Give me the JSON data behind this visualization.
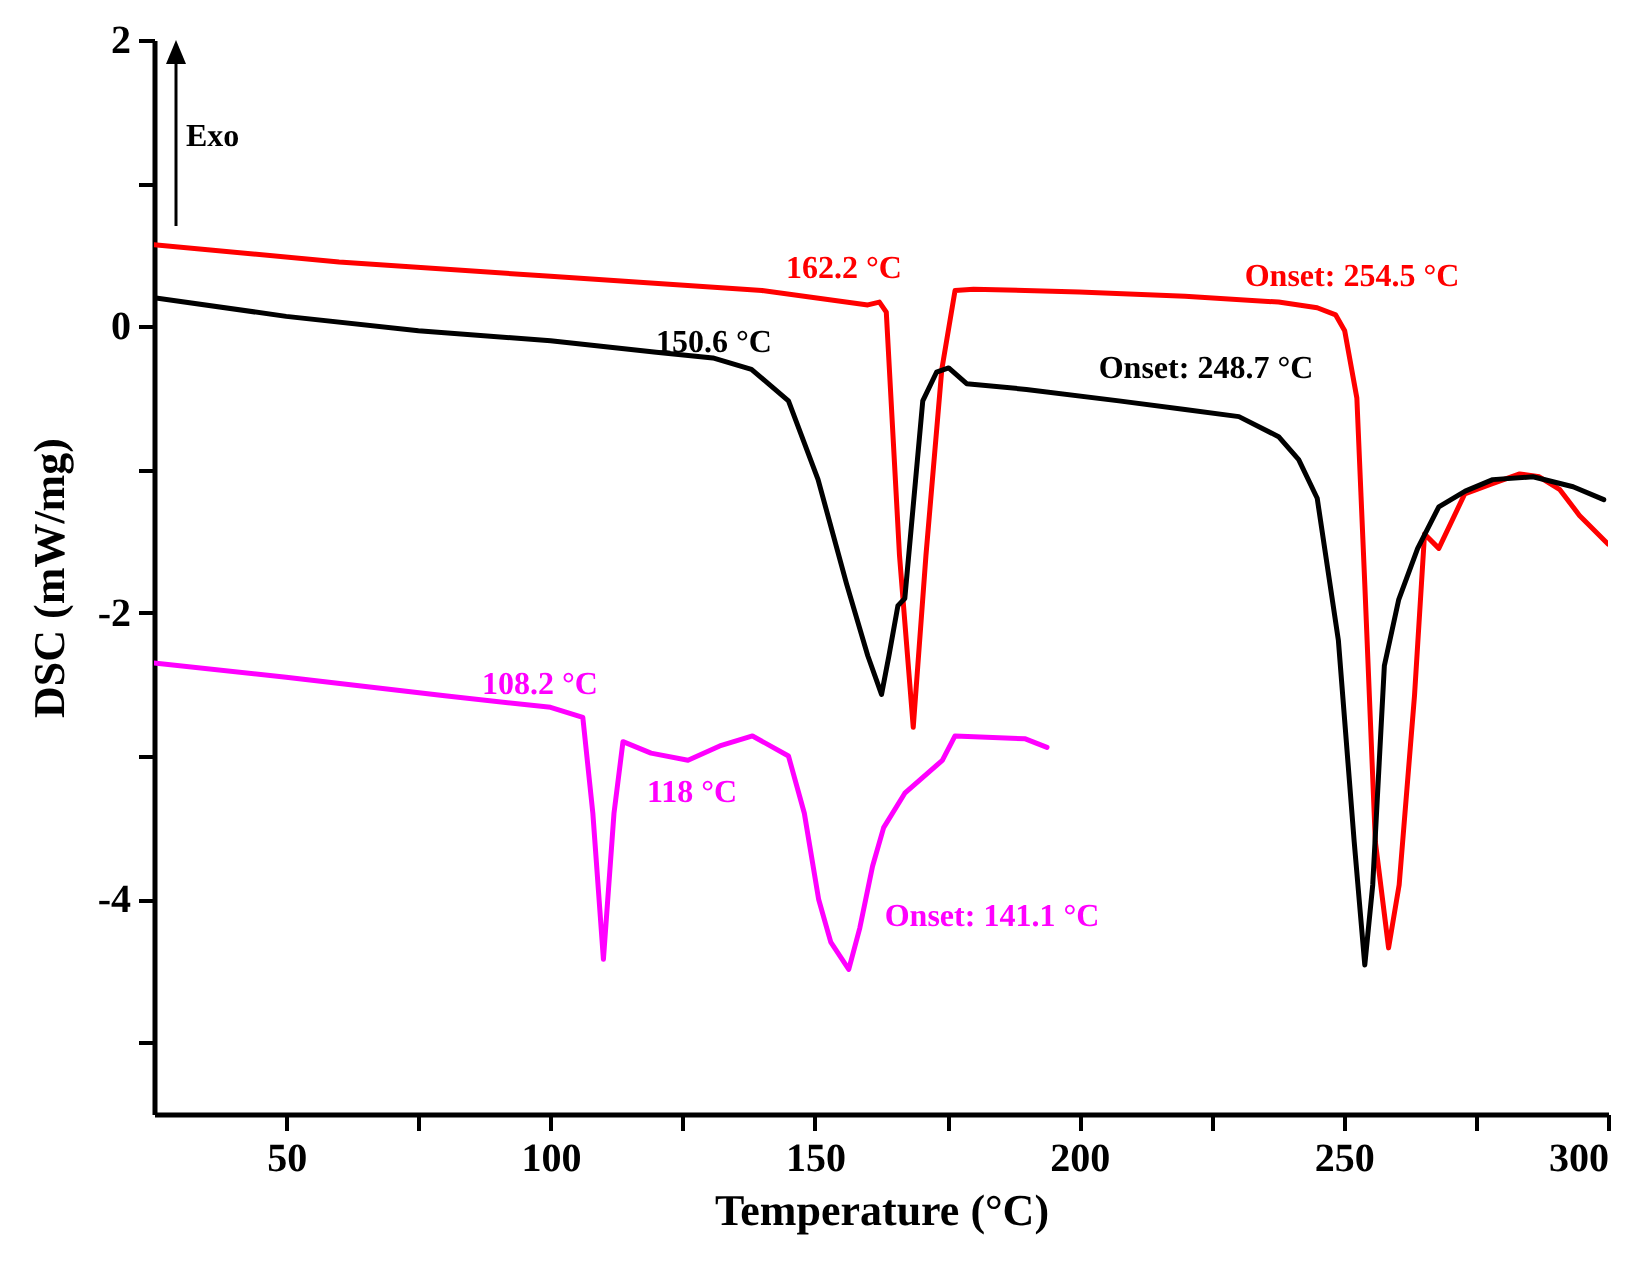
{
  "chart_data": {
    "type": "line",
    "xlabel": "Temperature (°C)",
    "ylabel": "DSC (mW/mg)",
    "xlim": [
      25,
      300
    ],
    "ylim": [
      -5.5,
      2
    ],
    "xticks": [
      50,
      {
        "value": 75,
        "label": null
      },
      100,
      {
        "value": 125,
        "label": null
      },
      150,
      {
        "value": 175,
        "label": null
      },
      200,
      {
        "value": 225,
        "label": null
      },
      250,
      {
        "value": 275,
        "label": null
      },
      300
    ],
    "yticks": [
      {
        "value": -5,
        "label": null
      },
      -4,
      {
        "value": -3,
        "label": null
      },
      -2,
      {
        "value": -1,
        "label": null
      },
      0,
      {
        "value": 1,
        "label": null
      },
      2
    ],
    "grid": false,
    "legend": false,
    "line_style": "solid",
    "series": [
      {
        "color": "#ff0000",
        "x": [
          25,
          60,
          100,
          140,
          160,
          162.2,
          163.5,
          166,
          168.6,
          171,
          174,
          176.5,
          180,
          200,
          220,
          237.7,
          245,
          248.5,
          250.2,
          252.5,
          254,
          256,
          258.5,
          260.5,
          263.4,
          265.3,
          268,
          272.9,
          278,
          283.3,
          287,
          290.9,
          294.6,
          300
        ],
        "values": [
          0.57,
          0.45,
          0.35,
          0.25,
          0.15,
          0.17,
          0.1,
          -1.6,
          -2.8,
          -1.6,
          -0.3,
          0.25,
          0.26,
          0.24,
          0.21,
          0.17,
          0.13,
          0.08,
          -0.03,
          -0.5,
          -1.8,
          -3.6,
          -4.34,
          -3.9,
          -2.58,
          -1.45,
          -1.55,
          -1.17,
          -1.1,
          -1.03,
          -1.05,
          -1.14,
          -1.32,
          -1.52
        ]
      },
      {
        "color": "#000000",
        "x": [
          25,
          50,
          75,
          100,
          120,
          130.7,
          138,
          145,
          150.6,
          156,
          160,
          162.6,
          164,
          165.7,
          167,
          170.4,
          173,
          175.3,
          178.7,
          190,
          207.5,
          220,
          230.2,
          237.7,
          241.5,
          245,
          249,
          252,
          254,
          255.5,
          257.7,
          260.4,
          264,
          268,
          273,
          278.2,
          285.8,
          293.4,
          299.2
        ],
        "values": [
          0.2,
          0.07,
          -0.03,
          -0.1,
          -0.18,
          -0.22,
          -0.3,
          -0.52,
          -1.07,
          -1.8,
          -2.3,
          -2.57,
          -2.3,
          -1.95,
          -1.9,
          -0.52,
          -0.32,
          -0.29,
          -0.4,
          -0.44,
          -0.52,
          -0.58,
          -0.63,
          -0.77,
          -0.93,
          -1.2,
          -2.19,
          -3.6,
          -4.46,
          -3.9,
          -2.37,
          -1.91,
          -1.55,
          -1.26,
          -1.15,
          -1.07,
          -1.05,
          -1.12,
          -1.21
        ]
      },
      {
        "color": "#ff00ff",
        "x": [
          25,
          50,
          80,
          100,
          106.1,
          108,
          110,
          112,
          113.7,
          119,
          126,
          132,
          138.2,
          145,
          148,
          150.7,
          153,
          156.4,
          158.5,
          160.9,
          163,
          167,
          174.1,
          176.5,
          189.8,
          193.9
        ],
        "values": [
          -2.35,
          -2.45,
          -2.58,
          -2.66,
          -2.73,
          -3.4,
          -4.42,
          -3.4,
          -2.9,
          -2.98,
          -3.03,
          -2.93,
          -2.86,
          -3.0,
          -3.4,
          -4.0,
          -4.3,
          -4.49,
          -4.2,
          -3.77,
          -3.5,
          -3.26,
          -3.03,
          -2.86,
          -2.88,
          -2.94
        ]
      }
    ],
    "annotations": [
      "Exo",
      "162.2 °C",
      "150.6 °C",
      "Onset: 254.5 °C",
      "Onset: 248.7 °C",
      "108.2 °C",
      "118 °C",
      "Onset: 141.1 °C"
    ]
  }
}
